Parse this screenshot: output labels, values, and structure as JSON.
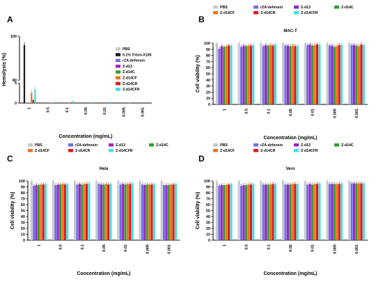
{
  "figure": {
    "panel_letters": [
      "A",
      "B",
      "C",
      "D"
    ],
    "series_colors": {
      "PBS": "#c8c8c8",
      "0.1% Triton-X100": "#1a1a1a",
      "rZA-defensin": "#6e6ee6",
      "Z-d13": "#a020c8",
      "Z-d14C": "#2ca02c",
      "Z-d14CF": "#f07020",
      "Z-d14CR": "#e01818",
      "Z-d14CFR": "#40e0e0"
    }
  },
  "chart_data": [
    {
      "type": "bar",
      "panel": "A",
      "title": "",
      "xlabel": "Concentration (mg/mL)",
      "ylabel": "Hemolysis (%)",
      "ylim": [
        0,
        100
      ],
      "y_axis_break": [
        5,
        80
      ],
      "yticks": [
        0,
        5,
        80,
        100
      ],
      "categories": [
        "1",
        "0.5",
        "0.1",
        "0.05",
        "0.01",
        "0.005",
        "0.001"
      ],
      "legend_position": "right",
      "series": [
        {
          "name": "PBS",
          "values": [
            0,
            0,
            0,
            0,
            0,
            0,
            0
          ]
        },
        {
          "name": "0.1% Triton-X100",
          "values": [
            96,
            0,
            0,
            0,
            0,
            0,
            0
          ]
        },
        {
          "name": "rZA-defensin",
          "values": [
            0.1,
            0,
            0,
            0,
            0,
            0,
            0
          ]
        },
        {
          "name": "Z-d13",
          "values": [
            0.1,
            0,
            0,
            0,
            0,
            0,
            0
          ]
        },
        {
          "name": "Z-d14C",
          "values": [
            0.1,
            0,
            0,
            0,
            0,
            0,
            0
          ]
        },
        {
          "name": "Z-d14CF",
          "values": [
            2.5,
            0.1,
            0.1,
            0,
            0,
            0,
            0
          ]
        },
        {
          "name": "Z-d14CR",
          "values": [
            0.8,
            0.1,
            0.2,
            0,
            0,
            0,
            0
          ]
        },
        {
          "name": "Z-d14CFR",
          "values": [
            3.5,
            0.3,
            0.5,
            0.2,
            0.3,
            0.1,
            0
          ]
        }
      ]
    },
    {
      "type": "bar",
      "panel": "B",
      "title": "MAC-T",
      "xlabel": "Concentration (mg/mL)",
      "ylabel": "Cell viability (%)",
      "ylim": [
        0,
        100
      ],
      "yticks": [
        0,
        10,
        20,
        30,
        40,
        50,
        60,
        70,
        80,
        90,
        100
      ],
      "categories": [
        "1",
        "0.5",
        "0.1",
        "0.05",
        "0.01",
        "0.005",
        "0.001"
      ],
      "legend_position": "top",
      "series": [
        {
          "name": "PBS",
          "values": [
            100,
            100,
            100,
            100,
            100,
            100,
            100
          ]
        },
        {
          "name": "rZA-defensin",
          "values": [
            91,
            94,
            95,
            96,
            97,
            96,
            97
          ]
        },
        {
          "name": "Z-d13",
          "values": [
            95,
            96,
            97,
            96,
            98,
            96,
            97
          ]
        },
        {
          "name": "Z-d14C",
          "values": [
            94,
            95,
            96,
            95,
            96,
            94,
            96
          ]
        },
        {
          "name": "Z-d14CF",
          "values": [
            95,
            96,
            97,
            96,
            97,
            95,
            95
          ]
        },
        {
          "name": "Z-d14CR",
          "values": [
            96,
            96,
            96,
            95,
            98,
            97,
            98
          ]
        },
        {
          "name": "Z-d14CFR",
          "values": [
            96,
            97,
            98,
            96,
            98,
            97,
            97
          ]
        }
      ]
    },
    {
      "type": "bar",
      "panel": "C",
      "title": "Hela",
      "xlabel": "Concentration (mg/mL)",
      "ylabel": "Cell viability (%)",
      "ylim": [
        0,
        100
      ],
      "yticks": [
        0,
        10,
        20,
        30,
        40,
        50,
        60,
        70,
        80,
        90,
        100
      ],
      "categories": [
        "1",
        "0.5",
        "0.1",
        "0.05",
        "0.01",
        "0.005",
        "0.001"
      ],
      "legend_position": "top",
      "series": [
        {
          "name": "PBS",
          "values": [
            100,
            100,
            100,
            100,
            100,
            100,
            100
          ]
        },
        {
          "name": "rZA-defensin",
          "values": [
            92,
            93,
            94,
            95,
            94,
            94,
            93
          ]
        },
        {
          "name": "Z-d13",
          "values": [
            93,
            94,
            95,
            94,
            95,
            93,
            93
          ]
        },
        {
          "name": "Z-d14C",
          "values": [
            93,
            94,
            94,
            94,
            94,
            94,
            93
          ]
        },
        {
          "name": "Z-d14CF",
          "values": [
            94,
            95,
            95,
            95,
            95,
            94,
            94
          ]
        },
        {
          "name": "Z-d14CR",
          "values": [
            94,
            94,
            95,
            94,
            95,
            94,
            94
          ]
        },
        {
          "name": "Z-d14CFR",
          "values": [
            95,
            95,
            96,
            95,
            96,
            95,
            95
          ]
        }
      ]
    },
    {
      "type": "bar",
      "panel": "D",
      "title": "Vero",
      "xlabel": "Concentration (mg/mL)",
      "ylabel": "Cell viability (%)",
      "ylim": [
        0,
        100
      ],
      "yticks": [
        0,
        10,
        20,
        30,
        40,
        50,
        60,
        70,
        80,
        90,
        100
      ],
      "categories": [
        "1",
        "0.5",
        "0.1",
        "0.05",
        "0.01",
        "0.005",
        "0.001"
      ],
      "legend_position": "top",
      "series": [
        {
          "name": "PBS",
          "values": [
            100,
            100,
            100,
            100,
            100,
            100,
            100
          ]
        },
        {
          "name": "rZA-defensin",
          "values": [
            92,
            92,
            94,
            94,
            94,
            95,
            96
          ]
        },
        {
          "name": "Z-d13",
          "values": [
            93,
            93,
            94,
            94,
            95,
            95,
            96
          ]
        },
        {
          "name": "Z-d14C",
          "values": [
            93,
            93,
            94,
            94,
            94,
            95,
            96
          ]
        },
        {
          "name": "Z-d14CF",
          "values": [
            93,
            94,
            94,
            95,
            95,
            95,
            96
          ]
        },
        {
          "name": "Z-d14CR",
          "values": [
            94,
            94,
            95,
            95,
            95,
            95,
            96
          ]
        },
        {
          "name": "Z-d14CFR",
          "values": [
            95,
            95,
            95,
            95,
            96,
            96,
            96
          ]
        }
      ]
    }
  ]
}
